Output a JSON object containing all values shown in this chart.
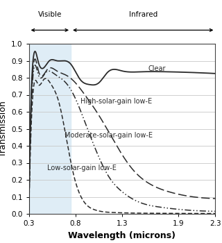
{
  "xlim": [
    0.3,
    2.3
  ],
  "ylim": [
    0.0,
    1.0
  ],
  "xlabel": "Wavelength (microns)",
  "ylabel": "Transmission",
  "visible_region": [
    0.3,
    0.75
  ],
  "visible_fill_color": "#daeaf5",
  "background_color": "#ffffff",
  "yticks": [
    0.0,
    0.1,
    0.2,
    0.3,
    0.4,
    0.5,
    0.6,
    0.7,
    0.8,
    0.9,
    1.0
  ],
  "xticks": [
    0.3,
    0.8,
    1.3,
    1.9,
    2.3
  ],
  "xtick_labels": [
    "0.3",
    "0.8",
    "1.3",
    "1.9",
    "2.3"
  ],
  "grid_color": "#c8c8c8",
  "line_color": "#2a2a2a",
  "label_clear": "Clear",
  "label_high": "High-solar-gain low-E",
  "label_mod": "Moderate-solar-gain low-E",
  "label_low": "Low-solar-gain low-E",
  "visible_label": "Visible",
  "infrared_label": "Infrared",
  "annotation_fontsize": 7.0,
  "axis_label_fontsize": 9,
  "tick_fontsize": 7.5
}
